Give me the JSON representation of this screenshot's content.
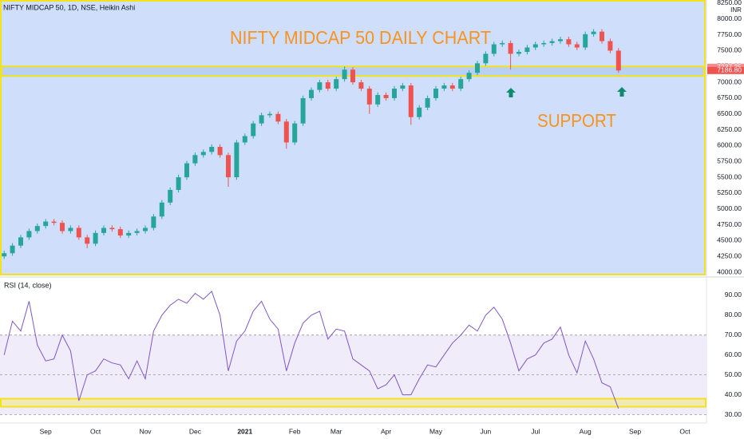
{
  "chart_data": [
    {
      "type": "candlestick",
      "title": "NIFTY MIDCAP 50, 1D, NSE, Heikin Ashi",
      "annotation_title": "NIFTY MIDCAP 50 DAILY CHART",
      "annotation_support": "SUPPORT",
      "currency": "INR",
      "background": "#cfdefa",
      "up_color": "#26a69a",
      "down_color": "#ef5350",
      "annotation_color": "#f7931e",
      "zone_color": "#f2e31a",
      "open": [
        4250,
        4300,
        4420,
        4550,
        4650,
        4730,
        4800,
        4780,
        4650,
        4700,
        4550,
        4450,
        4620,
        4700,
        4680,
        4580,
        4620,
        4650,
        4700,
        4880,
        5100,
        5300,
        5500,
        5720,
        5850,
        5900,
        5980,
        5850,
        5500,
        6050,
        6150,
        6350,
        6480,
        6500,
        6380,
        6050,
        6350,
        6750,
        6880,
        7000,
        6900,
        7050,
        7200,
        7000,
        6900,
        6650,
        6800,
        6750,
        6900,
        6950,
        6450,
        6600,
        6750,
        6900,
        6950,
        6900,
        7050,
        7150,
        7300,
        7450,
        7600,
        7620,
        7450,
        7480,
        7550,
        7600,
        7620,
        7650,
        7680,
        7600,
        7550,
        7760,
        7800,
        7650,
        7500
      ],
      "high": [
        4340,
        4460,
        4590,
        4690,
        4770,
        4840,
        4840,
        4820,
        4740,
        4740,
        4590,
        4660,
        4740,
        4740,
        4720,
        4660,
        4690,
        4740,
        4920,
        5140,
        5340,
        5540,
        5760,
        5890,
        5940,
        6020,
        6020,
        5890,
        6090,
        6190,
        6390,
        6520,
        6540,
        6540,
        6420,
        6390,
        6790,
        6920,
        7040,
        7040,
        7090,
        7250,
        7240,
        7040,
        6940,
        6840,
        6840,
        6940,
        6990,
        6990,
        6640,
        6790,
        6940,
        6990,
        6990,
        7090,
        7190,
        7340,
        7490,
        7640,
        7660,
        7660,
        7520,
        7590,
        7640,
        7660,
        7690,
        7720,
        7720,
        7640,
        7800,
        7840,
        7840,
        7690,
        7540
      ],
      "low": [
        4210,
        4260,
        4380,
        4510,
        4610,
        4690,
        4740,
        4610,
        4610,
        4510,
        4380,
        4410,
        4580,
        4640,
        4540,
        4540,
        4580,
        4610,
        4660,
        4840,
        5060,
        5260,
        5460,
        5680,
        5810,
        5860,
        5810,
        5350,
        5460,
        6010,
        6110,
        6310,
        6440,
        6340,
        5950,
        6010,
        6310,
        6710,
        6840,
        6860,
        6860,
        7010,
        6960,
        6860,
        6500,
        6610,
        6710,
        6710,
        6860,
        6330,
        6410,
        6560,
        6710,
        6860,
        6860,
        6860,
        7010,
        7110,
        7260,
        7410,
        7560,
        7200,
        7410,
        7440,
        7510,
        7560,
        7580,
        7610,
        7560,
        7510,
        7510,
        7720,
        7610,
        7460,
        7150
      ],
      "close": [
        4300,
        4420,
        4550,
        4650,
        4730,
        4800,
        4780,
        4650,
        4700,
        4550,
        4450,
        4620,
        4700,
        4680,
        4580,
        4620,
        4650,
        4700,
        4880,
        5100,
        5300,
        5500,
        5720,
        5850,
        5900,
        5980,
        5850,
        5500,
        6050,
        6150,
        6350,
        6480,
        6500,
        6380,
        6050,
        6350,
        6750,
        6880,
        7000,
        6900,
        7050,
        7200,
        7000,
        6900,
        6650,
        6800,
        6750,
        6900,
        6950,
        6450,
        6600,
        6750,
        6900,
        6950,
        6900,
        7050,
        7150,
        7300,
        7450,
        7600,
        7620,
        7450,
        7480,
        7550,
        7600,
        7620,
        7650,
        7680,
        7600,
        7550,
        7760,
        7800,
        7650,
        7500,
        7186.8
      ],
      "ylim": [
        3950,
        8300
      ],
      "yticks": [
        {
          "value": 4000,
          "label": "4000.00"
        },
        {
          "value": 4250,
          "label": "4250.00"
        },
        {
          "value": 4500,
          "label": "4500.00"
        },
        {
          "value": 4750,
          "label": "4750.00"
        },
        {
          "value": 5000,
          "label": "5000.00"
        },
        {
          "value": 5250,
          "label": "5250.00"
        },
        {
          "value": 5500,
          "label": "5500.00"
        },
        {
          "value": 5750,
          "label": "5750.00"
        },
        {
          "value": 6000,
          "label": "6000.00"
        },
        {
          "value": 6250,
          "label": "6250.00"
        },
        {
          "value": 6500,
          "label": "6500.00"
        },
        {
          "value": 6750,
          "label": "6750.00"
        },
        {
          "value": 7000,
          "label": "7000.00"
        },
        {
          "value": 7250,
          "label": "7250.00"
        },
        {
          "value": 7500,
          "label": "7500.00"
        },
        {
          "value": 7750,
          "label": "7750.00"
        },
        {
          "value": 8000,
          "label": "8000.00"
        },
        {
          "value": 8250,
          "label": "8250.00"
        }
      ],
      "price_markers": [
        7237.25,
        {
          "value": 7186.8,
          "label": "7186.80"
        }
      ],
      "support_zone": [
        7100,
        7250
      ]
    },
    {
      "type": "line",
      "title": "RSI (14, close)",
      "color": "#7e57c2",
      "band_color": "#ede7f9",
      "categories": [
        null,
        null,
        null,
        null,
        null,
        "Sep",
        null,
        null,
        null,
        null,
        null,
        "Oct",
        null,
        null,
        null,
        null,
        null,
        "Nov",
        null,
        null,
        null,
        null,
        null,
        "Dec",
        null,
        null,
        null,
        null,
        null,
        "2021",
        null,
        null,
        null,
        null,
        null,
        "Feb",
        null,
        null,
        null,
        null,
        "Mar",
        null,
        null,
        null,
        null,
        null,
        "Apr",
        null,
        null,
        null,
        null,
        null,
        "May",
        null,
        null,
        null,
        null,
        null,
        "Jun",
        null,
        null,
        null,
        null,
        null,
        "Jul",
        null,
        null,
        null,
        null,
        null,
        "Aug",
        null,
        null,
        null,
        null,
        null,
        "Sep",
        null,
        null,
        null,
        null,
        null,
        "Oct",
        null,
        null
      ],
      "values": [
        60,
        77,
        72,
        87,
        65,
        57,
        58,
        70,
        62,
        37,
        50,
        52,
        58,
        56,
        55,
        48,
        57,
        48,
        72,
        80,
        85,
        88,
        86,
        91,
        88,
        92,
        80,
        52,
        67,
        72,
        82,
        87,
        78,
        73,
        52,
        66,
        76,
        80,
        82,
        68,
        73,
        72,
        58,
        55,
        52,
        43,
        45,
        50,
        40,
        40,
        48,
        55,
        54,
        60,
        66,
        70,
        75,
        72,
        80,
        84,
        78,
        66,
        52,
        58,
        60,
        66,
        68,
        74,
        60,
        51,
        67,
        58,
        46,
        44,
        33,
        null,
        null,
        null,
        null,
        null,
        null,
        null,
        null,
        null,
        null
      ],
      "ylim": [
        27,
        98
      ],
      "yticks": [
        {
          "value": 30,
          "label": "30.00"
        },
        {
          "value": 40,
          "label": "40.00"
        },
        {
          "value": 50,
          "label": "50.00"
        },
        {
          "value": 60,
          "label": "60.00"
        },
        {
          "value": 70,
          "label": "70.00"
        },
        {
          "value": 80,
          "label": "80.00"
        },
        {
          "value": 90,
          "label": "90.00"
        }
      ],
      "levels": [
        70,
        50,
        30
      ],
      "support_zone": [
        34,
        38
      ]
    }
  ]
}
